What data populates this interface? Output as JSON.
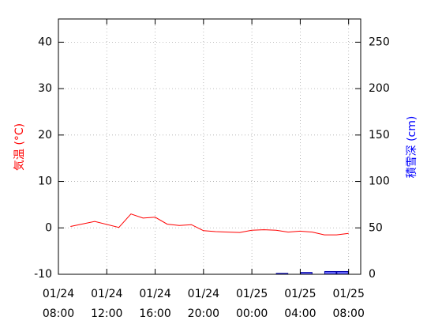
{
  "chart_data": {
    "type": "line",
    "title": "",
    "colors": {
      "temperature": "#ff0000",
      "snow_fill": "#6666ff",
      "snow_stroke": "#0000aa",
      "left_axis_title": "#ff0000",
      "right_axis_title": "#0000ff"
    },
    "grid": true,
    "y_left": {
      "label": "気温 (°C)",
      "ylim": [
        -10,
        45
      ],
      "ticks": [
        -10,
        0,
        10,
        20,
        30,
        40
      ],
      "tick_labels": [
        "-10",
        "0",
        "10",
        "20",
        "30",
        "40"
      ]
    },
    "y_right": {
      "label": "積雪深 (cm)",
      "ylim": [
        0,
        275
      ],
      "ticks": [
        0,
        50,
        100,
        150,
        200,
        250
      ],
      "tick_labels": [
        "0",
        "50",
        "100",
        "150",
        "200",
        "250"
      ]
    },
    "x_axis": {
      "range_hours": [
        0,
        25
      ],
      "ticks": [
        {
          "hour": 0,
          "date": "01/24",
          "time": "08:00"
        },
        {
          "hour": 4,
          "date": "01/24",
          "time": "12:00"
        },
        {
          "hour": 8,
          "date": "01/24",
          "time": "16:00"
        },
        {
          "hour": 12,
          "date": "01/24",
          "time": "20:00"
        },
        {
          "hour": 16,
          "date": "01/25",
          "time": "00:00"
        },
        {
          "hour": 20,
          "date": "01/25",
          "time": "04:00"
        },
        {
          "hour": 24,
          "date": "01/25",
          "time": "08:00"
        }
      ]
    },
    "series": [
      {
        "kind": "line",
        "axis": "left",
        "hours": [
          1,
          3,
          5,
          6,
          7,
          8,
          9,
          10,
          11,
          12,
          13,
          14,
          15,
          16,
          17,
          18,
          19,
          20,
          21,
          22,
          23,
          24
        ],
        "values": [
          0.3,
          1.4,
          0.1,
          3.0,
          2.1,
          2.3,
          0.8,
          0.5,
          0.7,
          -0.6,
          -0.8,
          -0.9,
          -1.0,
          -0.5,
          -0.4,
          -0.5,
          -0.9,
          -0.7,
          -0.9,
          -1.5,
          -1.5,
          -1.2
        ]
      },
      {
        "kind": "bar",
        "axis": "right",
        "hours": [
          19,
          20,
          21,
          22,
          23,
          24
        ],
        "values": [
          1,
          0,
          2,
          0,
          3,
          3
        ]
      }
    ]
  }
}
